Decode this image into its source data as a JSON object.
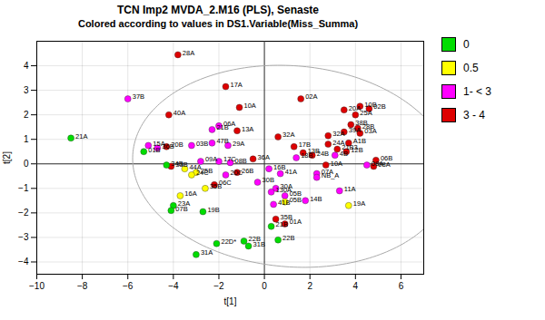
{
  "chart_data": {
    "type": "scatter",
    "title": "TCN Imp2 MVDA_2.M16 (PLS), Senaste",
    "subtitle": "Colored according to values in DS1.Variable(Miss_Summa)",
    "xlabel": "t[1]",
    "ylabel": "t[2]",
    "xlim": [
      -10,
      7
    ],
    "ylim": [
      -4.5,
      5
    ],
    "xticks": [
      -10,
      -8,
      -6,
      -4,
      -2,
      0,
      2,
      4,
      6
    ],
    "yticks": [
      -4,
      -3,
      -2,
      -1,
      0,
      1,
      2,
      3,
      4
    ],
    "grid": true,
    "legend": "right",
    "legend_entries": [
      {
        "name": "0",
        "color": "#00dd00"
      },
      {
        "name": "0.5",
        "color": "#ffff00"
      },
      {
        "name": "1- < 3",
        "color": "#ff00ff"
      },
      {
        "name": "3 - 4",
        "color": "#dd0000"
      }
    ],
    "ellipse": {
      "cx": 1.2,
      "cy": -0.1,
      "width": 14.0,
      "height": 8.2,
      "angle": -4
    },
    "points": [
      {
        "label": "28A",
        "x": -3.8,
        "y": 4.45,
        "color": "#dd0000"
      },
      {
        "label": "37B",
        "x": -6.0,
        "y": 2.65,
        "color": "#ff00ff"
      },
      {
        "label": "21A",
        "x": -8.5,
        "y": 1.05,
        "color": "#00dd00"
      },
      {
        "label": "40A",
        "x": -4.2,
        "y": 2.0,
        "color": "#dd0000"
      },
      {
        "label": "17A",
        "x": -1.7,
        "y": 3.15,
        "color": "#dd0000"
      },
      {
        "label": "10A",
        "x": -1.1,
        "y": 2.3,
        "color": "#dd0000"
      },
      {
        "label": "02A",
        "x": 1.6,
        "y": 2.65,
        "color": "#dd0000"
      },
      {
        "label": "06A",
        "x": -2.0,
        "y": 1.55,
        "color": "#ff00ff"
      },
      {
        "label": "21B",
        "x": -2.3,
        "y": 1.4,
        "color": "#ff00ff"
      },
      {
        "label": "13A",
        "x": -1.2,
        "y": 1.35,
        "color": "#dd0000"
      },
      {
        "label": "15A",
        "x": -5.1,
        "y": 0.75,
        "color": "#ff00ff"
      },
      {
        "label": "01B",
        "x": -5.3,
        "y": 0.5,
        "color": "#00dd00"
      },
      {
        "label": "36B",
        "x": -4.7,
        "y": 0.65,
        "color": "#ff00ff"
      },
      {
        "label": "20B",
        "x": -4.3,
        "y": 0.7,
        "color": "#dd0000"
      },
      {
        "label": "03B",
        "x": -3.2,
        "y": 0.75,
        "color": "#ff00ff"
      },
      {
        "label": "47B",
        "x": -2.3,
        "y": 0.85,
        "color": "#ff00ff"
      },
      {
        "label": "29A",
        "x": -1.6,
        "y": 0.75,
        "color": "#ff00ff"
      },
      {
        "label": "32A",
        "x": 0.6,
        "y": 1.1,
        "color": "#dd0000"
      },
      {
        "label": "33B",
        "x": -4.1,
        "y": -0.1,
        "color": "#dd0000"
      },
      {
        "label": "34B",
        "x": -4.3,
        "y": -0.05,
        "color": "#00dd00"
      },
      {
        "label": "09A",
        "x": -2.8,
        "y": 0.1,
        "color": "#ff00ff"
      },
      {
        "label": "17C",
        "x": -2.0,
        "y": 0.1,
        "color": "#ff00ff"
      },
      {
        "label": "08B",
        "x": -1.5,
        "y": 0.05,
        "color": "#ff00ff"
      },
      {
        "label": "16B",
        "x": 0.2,
        "y": -0.2,
        "color": "#ff00ff"
      },
      {
        "label": "06C",
        "x": -2.2,
        "y": -0.85,
        "color": "#dd0000"
      },
      {
        "label": "35B",
        "x": -2.6,
        "y": -1.0,
        "color": "#ffff00"
      },
      {
        "label": "16A",
        "x": -3.7,
        "y": -1.3,
        "color": "#ffff00"
      },
      {
        "label": "23A",
        "x": -4.0,
        "y": -1.7,
        "color": "#00dd00"
      },
      {
        "label": "07B",
        "x": -4.1,
        "y": -1.9,
        "color": "#00dd00"
      },
      {
        "label": "19B",
        "x": -2.7,
        "y": -1.95,
        "color": "#00dd00"
      },
      {
        "label": "22D*",
        "x": -2.1,
        "y": -3.25,
        "color": "#00dd00"
      },
      {
        "label": "31A",
        "x": -3.0,
        "y": -3.7,
        "color": "#00dd00"
      },
      {
        "label": "22B",
        "x": -0.9,
        "y": -3.15,
        "color": "#00dd00"
      },
      {
        "label": "31B",
        "x": -0.7,
        "y": -3.35,
        "color": "#00dd00"
      },
      {
        "label": "11A",
        "x": 3.3,
        "y": -1.1,
        "color": "#ff00ff"
      },
      {
        "label": "19A",
        "x": 3.7,
        "y": -1.7,
        "color": "#ffff00"
      },
      {
        "label": "35B",
        "x": 0.5,
        "y": -2.25,
        "color": "#dd0000"
      },
      {
        "label": "01A",
        "x": 0.9,
        "y": -2.45,
        "color": "#dd0000"
      },
      {
        "label": "21B",
        "x": 0.3,
        "y": -2.55,
        "color": "#00dd00"
      },
      {
        "label": "02B",
        "x": 4.6,
        "y": 2.25,
        "color": "#dd0000"
      },
      {
        "label": "10B",
        "x": 4.2,
        "y": 2.35,
        "color": "#dd0000"
      },
      {
        "label": "20A",
        "x": 3.5,
        "y": 2.2,
        "color": "#dd0000"
      },
      {
        "label": "25A",
        "x": 4.0,
        "y": 2.0,
        "color": "#dd0000"
      },
      {
        "label": "38B",
        "x": 3.8,
        "y": 1.6,
        "color": "#dd0000"
      },
      {
        "label": "28B",
        "x": 4.1,
        "y": 1.45,
        "color": "#dd0000"
      },
      {
        "label": "39A",
        "x": 3.5,
        "y": 1.3,
        "color": "#dd0000"
      },
      {
        "label": "03A",
        "x": 4.2,
        "y": 1.25,
        "color": "#dd0000"
      },
      {
        "label": "12B",
        "x": 3.6,
        "y": 0.5,
        "color": "#dd0000"
      },
      {
        "label": "06B",
        "x": 4.9,
        "y": 0.15,
        "color": "#dd0000"
      },
      {
        "label": "08A",
        "x": 4.8,
        "y": -0.1,
        "color": "#dd0000"
      },
      {
        "label": "A1B",
        "x": 3.7,
        "y": 0.85,
        "color": "#dd0000"
      },
      {
        "label": "24A",
        "x": 2.8,
        "y": 0.8,
        "color": "#dd0000"
      },
      {
        "label": "17B",
        "x": 1.3,
        "y": 0.7,
        "color": "#dd0000"
      },
      {
        "label": "13B",
        "x": 1.7,
        "y": 0.45,
        "color": "#dd0000"
      },
      {
        "label": "24B",
        "x": 2.1,
        "y": 0.35,
        "color": "#dd0000"
      },
      {
        "label": "32A",
        "x": 2.8,
        "y": 1.15,
        "color": "#dd0000"
      },
      {
        "label": "10A",
        "x": 2.7,
        "y": -0.05,
        "color": "#dd0000"
      },
      {
        "label": "30A",
        "x": 0.5,
        "y": -1.0,
        "color": "#ff00ff"
      },
      {
        "label": "05B",
        "x": 0.9,
        "y": -1.3,
        "color": "#ff00ff"
      },
      {
        "label": "41B",
        "x": 0.4,
        "y": -1.65,
        "color": "#ff00ff"
      },
      {
        "label": "14B",
        "x": 1.8,
        "y": -1.5,
        "color": "#ff00ff"
      },
      {
        "label": "07A",
        "x": 2.3,
        "y": -0.4,
        "color": "#ff00ff"
      },
      {
        "label": "NB_A",
        "x": 2.3,
        "y": -0.55,
        "color": "#ff00ff"
      },
      {
        "label": "4B",
        "x": 3.1,
        "y": 0.35,
        "color": "#ff00ff"
      },
      {
        "label": "21B3",
        "x": 3.2,
        "y": 0.6,
        "color": "#dd0000"
      },
      {
        "label": "25B",
        "x": -3.0,
        "y": -0.35,
        "color": "#ffff00"
      },
      {
        "label": "24C",
        "x": -3.2,
        "y": -0.45,
        "color": "#ffff00"
      },
      {
        "label": "44A",
        "x": -3.5,
        "y": -0.2,
        "color": "#ffff00"
      },
      {
        "label": "05B",
        "x": 0.9,
        "y": -1.55,
        "color": "#ffff00"
      },
      {
        "label": "41A",
        "x": 0.7,
        "y": -0.4,
        "color": "#ff00ff"
      },
      {
        "label": "30B",
        "x": -0.3,
        "y": -0.75,
        "color": "#ff00ff"
      },
      {
        "label": "36A",
        "x": -0.5,
        "y": 0.2,
        "color": "#dd0000"
      },
      {
        "label": "26B",
        "x": -1.2,
        "y": -0.35,
        "color": "#dd0000"
      },
      {
        "label": "20C",
        "x": -1.7,
        "y": -0.45,
        "color": "#ff00ff"
      },
      {
        "label": "18B",
        "x": 1.4,
        "y": 0.25,
        "color": "#ff00ff"
      },
      {
        "label": "08A",
        "x": 4.5,
        "y": -0.05,
        "color": "#ff00ff"
      },
      {
        "label": "130A",
        "x": 0.3,
        "y": -1.15,
        "color": "#ff00ff"
      },
      {
        "label": "22B",
        "x": 0.6,
        "y": -3.1,
        "color": "#00dd00"
      }
    ]
  }
}
